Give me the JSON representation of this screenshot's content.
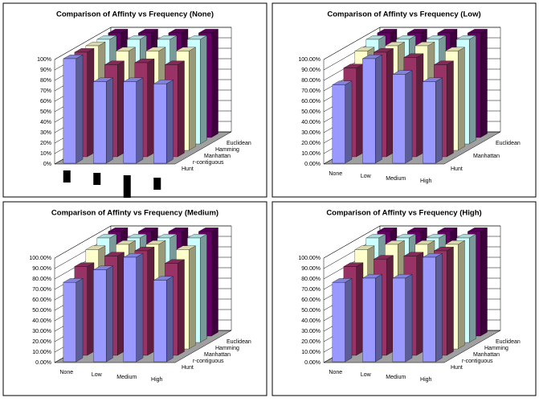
{
  "chart_data": [
    {
      "type": "bar3d",
      "title": "Comparison of Affinty vs Frequency (None)",
      "categories": [
        null,
        null,
        null,
        null
      ],
      "series": [
        {
          "name": "Hunt",
          "color": "#9999ff",
          "values": [
            100,
            78,
            78,
            76
          ]
        },
        {
          "name": "r-contiguous",
          "color": "#993366",
          "values": [
            100,
            88,
            90,
            88
          ]
        },
        {
          "name": "Manhattan",
          "color": "#ffffcc",
          "values": [
            100,
            95,
            95,
            95
          ]
        },
        {
          "name": "Hamming",
          "color": "#ccffff",
          "values": [
            100,
            100,
            100,
            100
          ]
        },
        {
          "name": "Euclidean",
          "color": "#660066",
          "values": [
            100,
            100,
            100,
            100
          ]
        }
      ],
      "ylim": [
        0,
        100
      ],
      "yticks": [
        {
          "value": 0,
          "label": "0%"
        },
        {
          "value": 10,
          "label": "10%"
        },
        {
          "value": 20,
          "label": "20%"
        },
        {
          "value": 30,
          "label": "30%"
        },
        {
          "value": 40,
          "label": "40%"
        },
        {
          "value": 50,
          "label": "50%"
        },
        {
          "value": 60,
          "label": "60%"
        },
        {
          "value": 70,
          "label": "70%"
        },
        {
          "value": 80,
          "label": "80%"
        },
        {
          "value": 90,
          "label": "90%"
        },
        {
          "value": 100,
          "label": "100%"
        }
      ],
      "grid": true
    },
    {
      "type": "bar3d",
      "title": "Comparison of Affinty vs Frequency (Low)",
      "categories": [
        "None",
        "Low",
        "Medium",
        "High"
      ],
      "series": [
        {
          "name": "Hunt",
          "color": "#9999ff",
          "values": [
            75,
            100,
            85,
            78
          ]
        },
        {
          "name": null,
          "color": "#993366",
          "values": [
            85,
            100,
            95,
            88
          ]
        },
        {
          "name": "Manhattan",
          "color": "#ffffcc",
          "values": [
            95,
            100,
            100,
            95
          ]
        },
        {
          "name": null,
          "color": "#ccffff",
          "values": [
            100,
            100,
            100,
            100
          ]
        },
        {
          "name": "Euclidean",
          "color": "#660066",
          "values": [
            100,
            100,
            100,
            100
          ]
        }
      ],
      "ylim": [
        0,
        100
      ],
      "yticks": [
        {
          "value": 0,
          "label": "0.00%"
        },
        {
          "value": 10,
          "label": "10.00%"
        },
        {
          "value": 20,
          "label": "20.00%"
        },
        {
          "value": 30,
          "label": "30.00%"
        },
        {
          "value": 40,
          "label": "40.00%"
        },
        {
          "value": 50,
          "label": "50.00%"
        },
        {
          "value": 60,
          "label": "60.00%"
        },
        {
          "value": 70,
          "label": "70.00%"
        },
        {
          "value": 80,
          "label": "80.00%"
        },
        {
          "value": 90,
          "label": "90.00%"
        },
        {
          "value": 100,
          "label": "100.00%"
        }
      ],
      "grid": true
    },
    {
      "type": "bar3d",
      "title": "Comparison of Affinty vs Frequency (Medium)",
      "categories": [
        "None",
        "Low",
        "Medium",
        "High"
      ],
      "series": [
        {
          "name": "Hunt",
          "color": "#9999ff",
          "values": [
            76,
            88,
            100,
            78
          ]
        },
        {
          "name": "r-contiguous",
          "color": "#993366",
          "values": [
            85,
            95,
            100,
            88
          ]
        },
        {
          "name": "Manhattan",
          "color": "#ffffcc",
          "values": [
            95,
            100,
            100,
            95
          ]
        },
        {
          "name": "Hamming",
          "color": "#ccffff",
          "values": [
            100,
            100,
            100,
            100
          ]
        },
        {
          "name": "Euclidean",
          "color": "#660066",
          "values": [
            100,
            100,
            100,
            100
          ]
        }
      ],
      "ylim": [
        0,
        100
      ],
      "yticks": [
        {
          "value": 0,
          "label": "0.00%"
        },
        {
          "value": 10,
          "label": "10.00%"
        },
        {
          "value": 20,
          "label": "20.00%"
        },
        {
          "value": 30,
          "label": "30.00%"
        },
        {
          "value": 40,
          "label": "40.00%"
        },
        {
          "value": 50,
          "label": "50.00%"
        },
        {
          "value": 60,
          "label": "60.00%"
        },
        {
          "value": 70,
          "label": "70.00%"
        },
        {
          "value": 80,
          "label": "80.00%"
        },
        {
          "value": 90,
          "label": "90.00%"
        },
        {
          "value": 100,
          "label": "100.00%"
        }
      ],
      "grid": true
    },
    {
      "type": "bar3d",
      "title": "Comparison of Affinty vs Frequency (High)",
      "categories": [
        "None",
        "Low",
        "Medium",
        "High"
      ],
      "series": [
        {
          "name": "Hunt",
          "color": "#9999ff",
          "values": [
            76,
            80,
            80,
            100
          ]
        },
        {
          "name": "r-contiguous",
          "color": "#993366",
          "values": [
            85,
            92,
            95,
            100
          ]
        },
        {
          "name": "Manhattan",
          "color": "#ffffcc",
          "values": [
            95,
            100,
            100,
            100
          ]
        },
        {
          "name": "Hamming",
          "color": "#ccffff",
          "values": [
            100,
            100,
            100,
            100
          ]
        },
        {
          "name": "Euclidean",
          "color": "#660066",
          "values": [
            100,
            100,
            100,
            100
          ]
        }
      ],
      "ylim": [
        0,
        100
      ],
      "yticks": [
        {
          "value": 0,
          "label": "0.00%"
        },
        {
          "value": 10,
          "label": "10.00%"
        },
        {
          "value": 20,
          "label": "20.00%"
        },
        {
          "value": 30,
          "label": "30.00%"
        },
        {
          "value": 40,
          "label": "40.00%"
        },
        {
          "value": 50,
          "label": "50.00%"
        },
        {
          "value": 60,
          "label": "60.00%"
        },
        {
          "value": 70,
          "label": "70.00%"
        },
        {
          "value": 80,
          "label": "80.00%"
        },
        {
          "value": 90,
          "label": "90.00%"
        },
        {
          "value": 100,
          "label": "100.00%"
        }
      ],
      "grid": true
    }
  ]
}
